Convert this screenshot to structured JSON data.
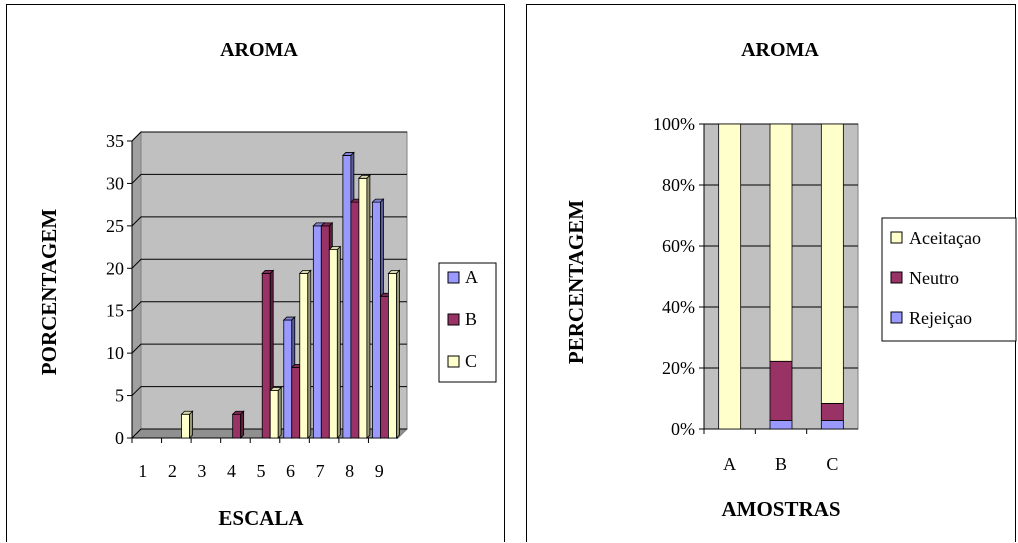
{
  "chart_data": [
    {
      "type": "bar",
      "title": "AROMA",
      "xlabel": "ESCALA",
      "ylabel": "PORCENTAGEM",
      "categories": [
        "1",
        "2",
        "3",
        "4",
        "5",
        "6",
        "7",
        "8",
        "9"
      ],
      "ylim": [
        0,
        35
      ],
      "yticks": [
        "0",
        "5",
        "10",
        "15",
        "20",
        "25",
        "30",
        "35"
      ],
      "grid": true,
      "legend_position": "right",
      "series": [
        {
          "name": "A",
          "color": "#9999ff",
          "values": [
            0,
            0,
            0,
            0,
            0,
            13.9,
            25,
            33.3,
            27.8
          ]
        },
        {
          "name": "B",
          "color": "#993366",
          "values": [
            0,
            0,
            0,
            2.8,
            19.4,
            8.3,
            25,
            27.8,
            16.7
          ]
        },
        {
          "name": "C",
          "color": "#ffffcc",
          "values": [
            0,
            2.8,
            0,
            0,
            5.6,
            19.4,
            22.2,
            30.6,
            19.4
          ]
        }
      ]
    },
    {
      "type": "bar",
      "stacked": "percent",
      "title": "AROMA",
      "xlabel": "AMOSTRAS",
      "ylabel": "PERCENTAGEM",
      "categories": [
        "A",
        "B",
        "C"
      ],
      "ylim": [
        0,
        100
      ],
      "yticks": [
        "0%",
        "20%",
        "40%",
        "60%",
        "80%",
        "100%"
      ],
      "grid": true,
      "legend_position": "right",
      "series": [
        {
          "name": "Rejeiçao",
          "color": "#9999ff",
          "values": [
            0,
            2.8,
            2.8
          ]
        },
        {
          "name": "Neutro",
          "color": "#993366",
          "values": [
            0,
            19.4,
            5.6
          ]
        },
        {
          "name": "Aceitaçao",
          "color": "#ffffcc",
          "values": [
            100,
            77.8,
            91.6
          ]
        }
      ],
      "legend_order": [
        "Aceitaçao",
        "Neutro",
        "Rejeiçao"
      ]
    }
  ]
}
